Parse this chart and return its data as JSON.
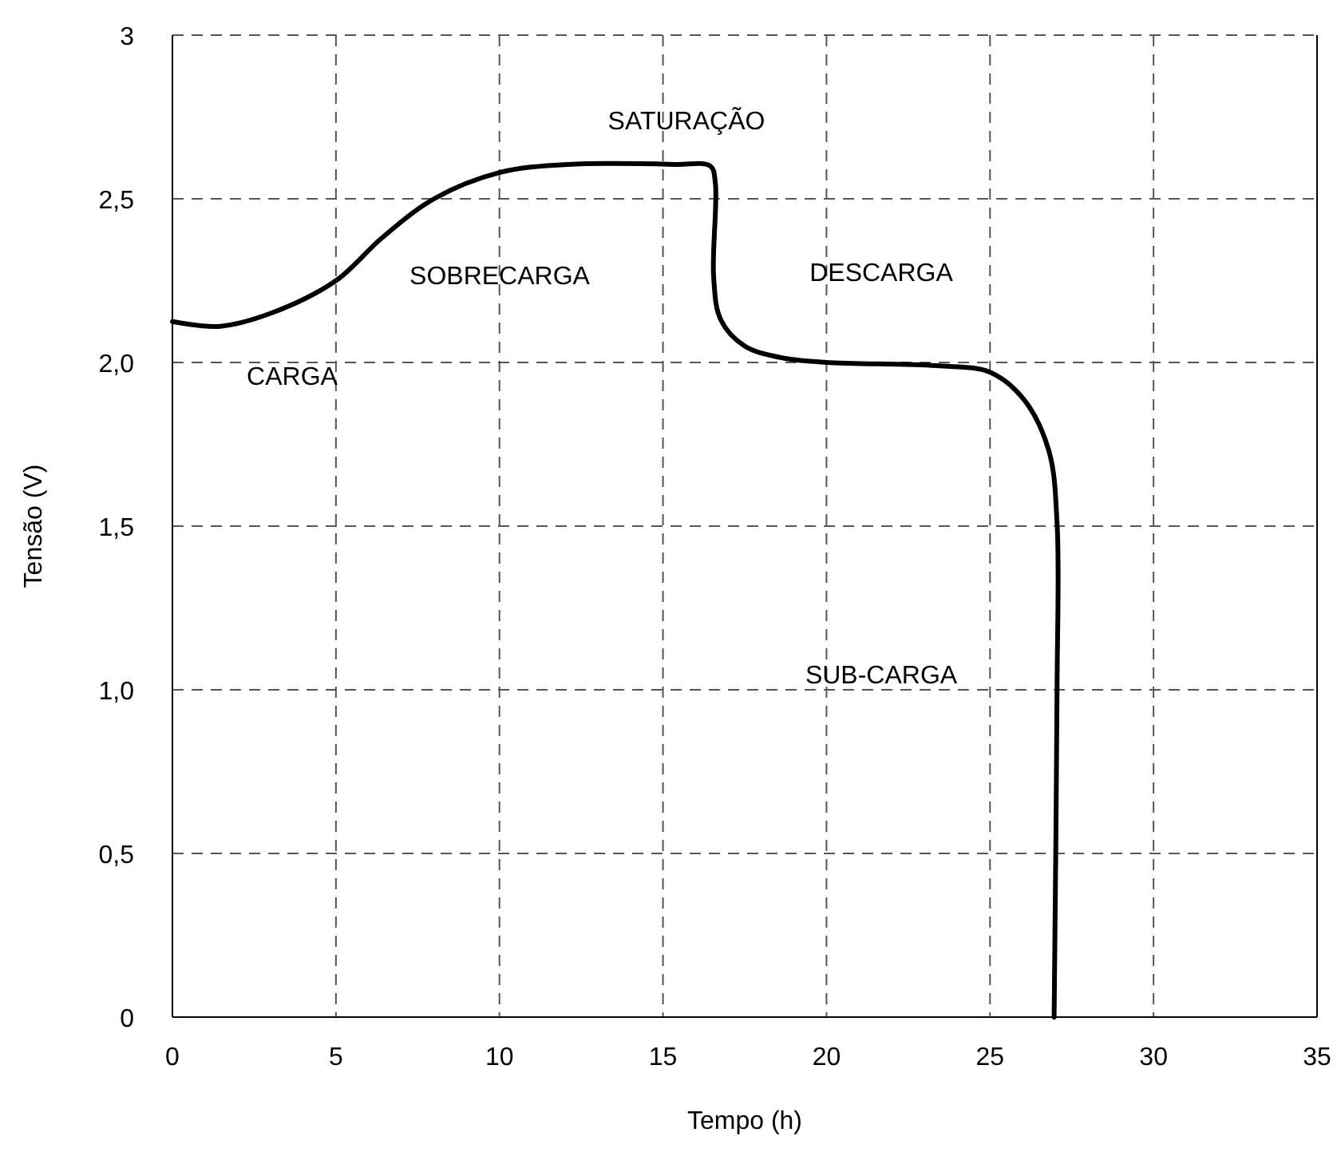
{
  "chart_data": {
    "type": "line",
    "xlabel": "Tempo (h)",
    "ylabel": "Tensão (V)",
    "xlim": [
      0,
      35
    ],
    "xticks": [
      0,
      5,
      10,
      15,
      20,
      25,
      30,
      35
    ],
    "ylim": [
      0,
      3
    ],
    "yticks": [
      0,
      {
        "value": 0.5,
        "label": "0,5"
      },
      {
        "value": 1,
        "label": "1,0"
      },
      {
        "value": 1.5,
        "label": "1,5"
      },
      {
        "value": 2,
        "label": "2,0"
      },
      {
        "value": 2.5,
        "label": "2,5"
      },
      3
    ],
    "grid": true,
    "line_style": "solid",
    "marker": "none",
    "series": [
      {
        "color": "#000000",
        "x": [
          0,
          1.4,
          3,
          5,
          6.4,
          8,
          10,
          12.1,
          15.4,
          16.45,
          16.6,
          16.55,
          16.77,
          17.5,
          18.6,
          20,
          23.35,
          25,
          26.05,
          26.8,
          27.05,
          27.05,
          26.96
        ],
        "values": [
          2.125,
          2.11,
          2.15,
          2.25,
          2.38,
          2.5,
          2.58,
          2.605,
          2.605,
          2.6,
          2.55,
          2.26,
          2.13,
          2.05,
          2.015,
          2.0,
          1.99,
          1.97,
          1.885,
          1.73,
          1.51,
          1.0,
          0
        ]
      }
    ],
    "annotations": [
      "SATURAÇÃO",
      "SOBRECARGA",
      "CARGA",
      "DESCARGA",
      "SUB-CARGA"
    ]
  }
}
